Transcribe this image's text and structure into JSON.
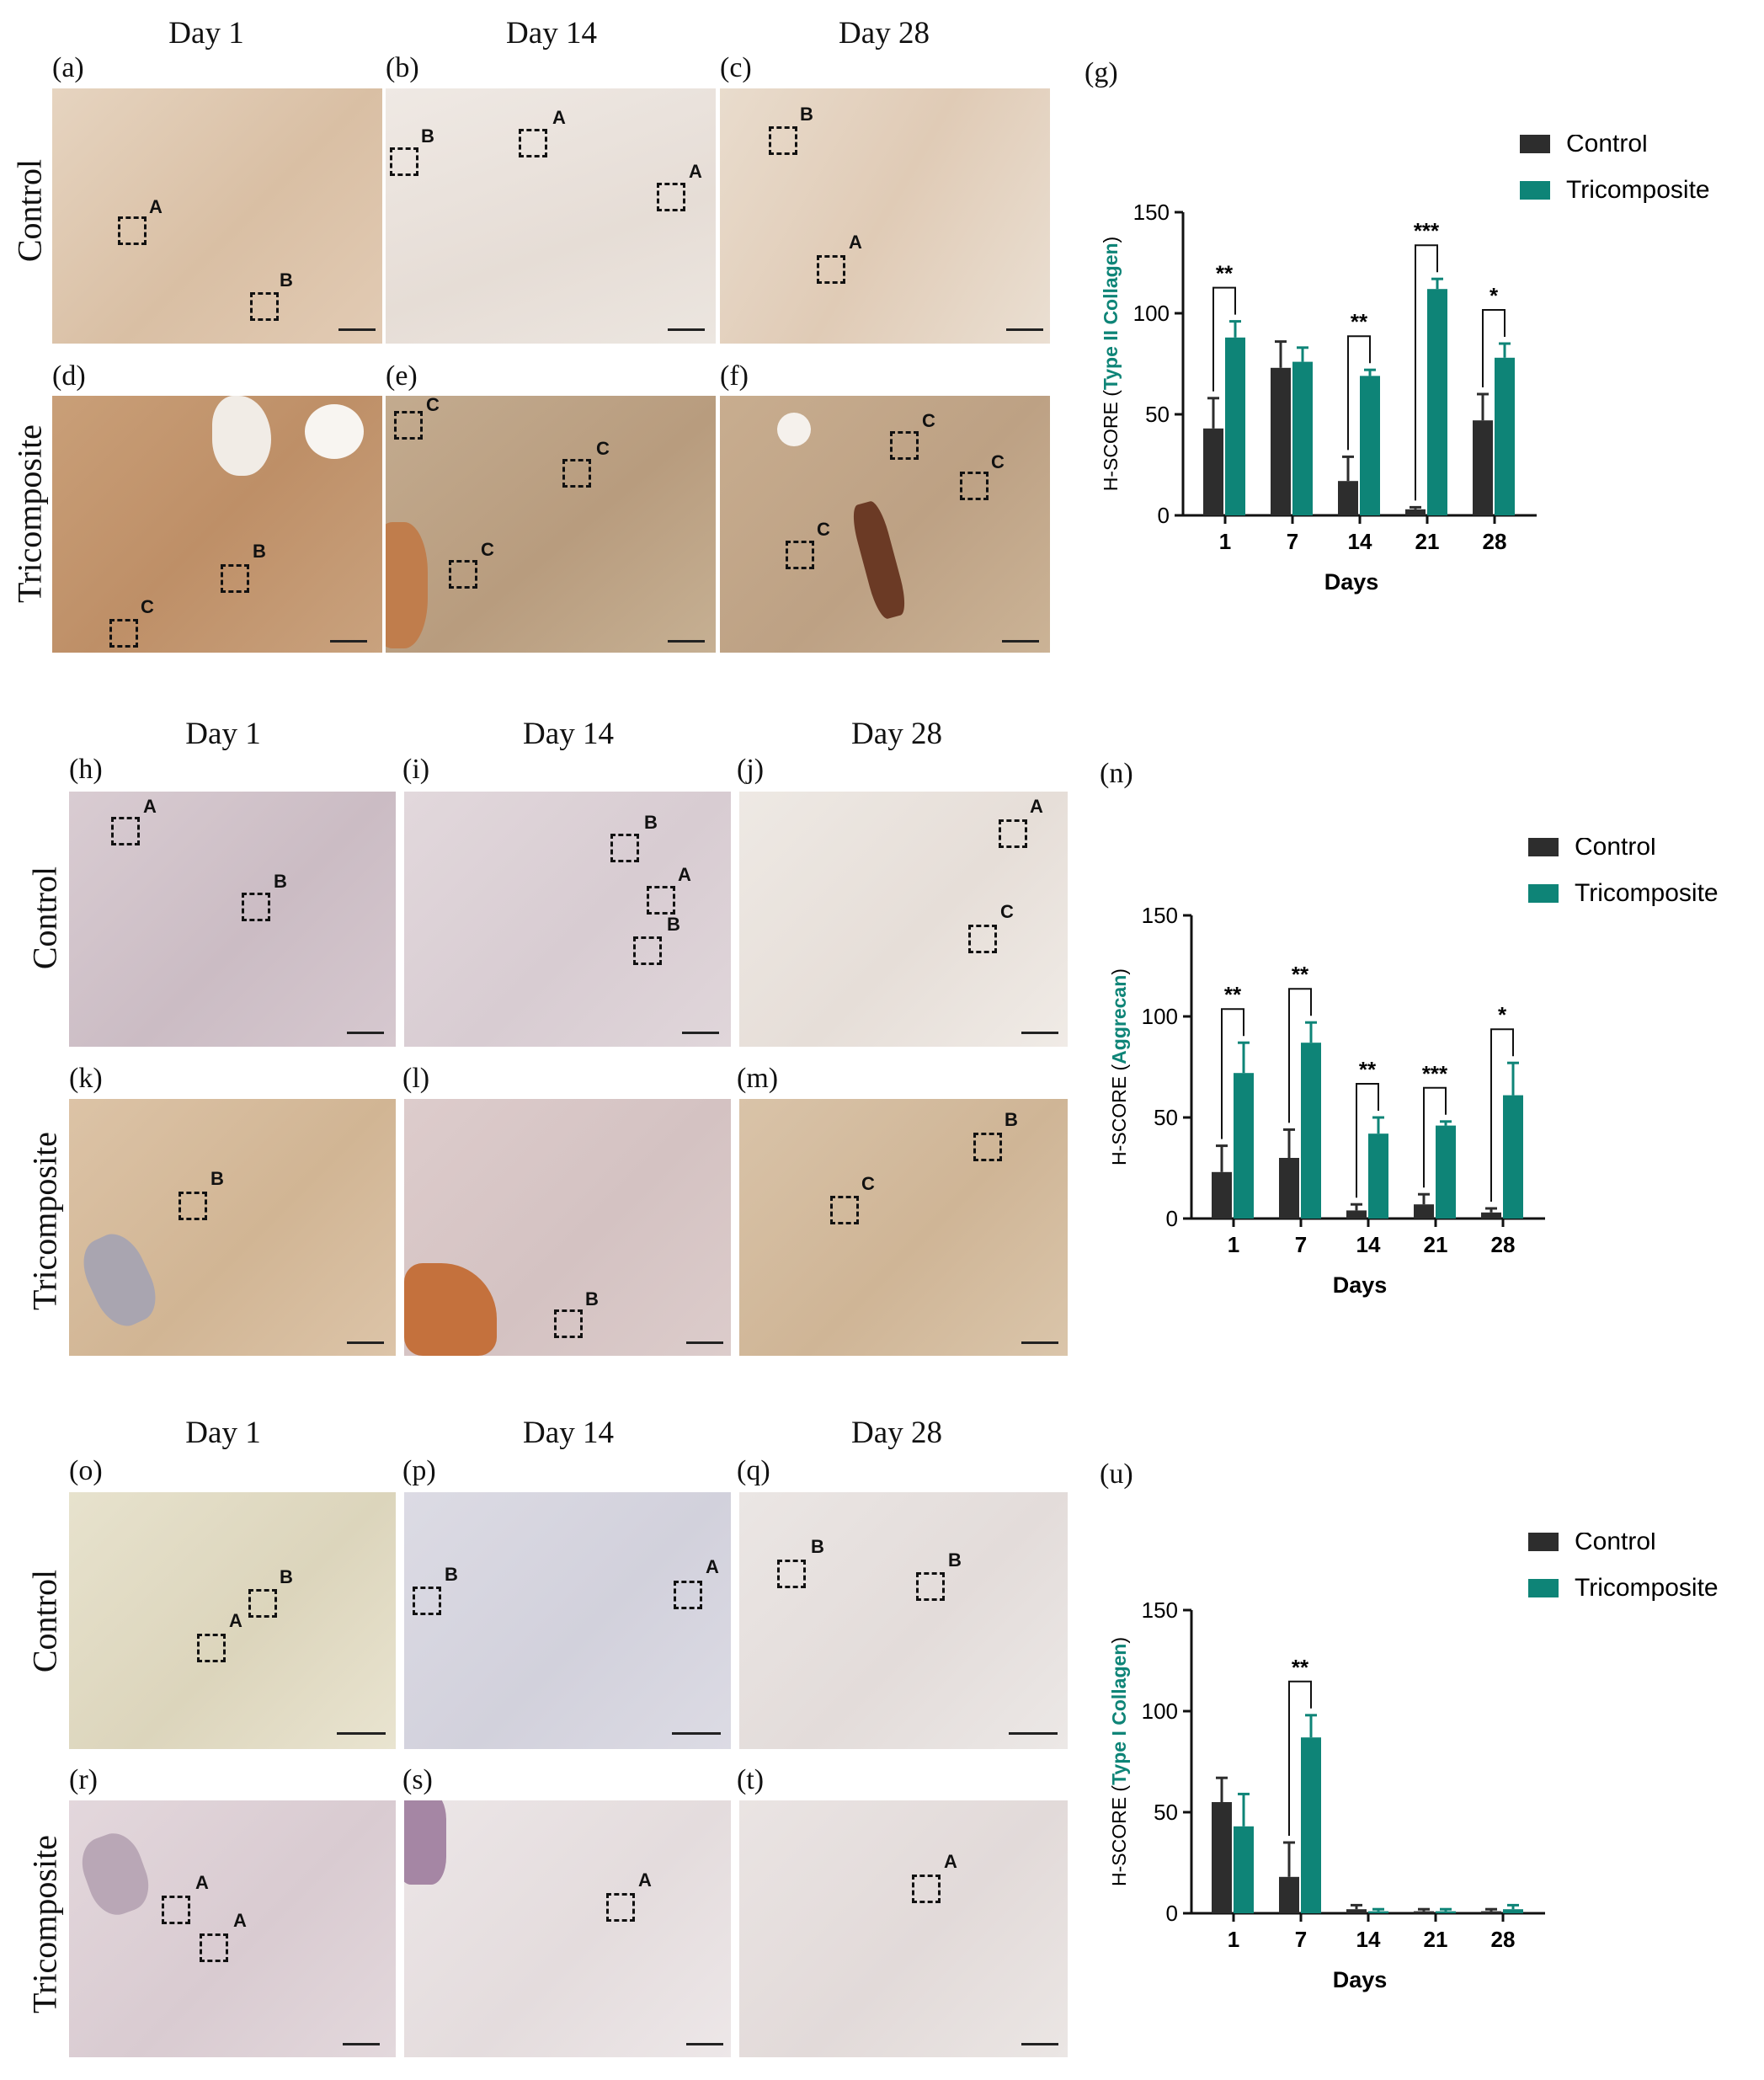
{
  "day_labels": [
    "Day 1",
    "Day 14",
    "Day 28"
  ],
  "row_labels": {
    "control": "Control",
    "tricomposite": "Tricomposite"
  },
  "panel_letters": [
    "(a)",
    "(b)",
    "(c)",
    "(d)",
    "(e)",
    "(f)",
    "(g)",
    "(h)",
    "(i)",
    "(j)",
    "(k)",
    "(l)",
    "(m)",
    "(n)",
    "(o)",
    "(p)",
    "(q)",
    "(r)",
    "(s)",
    "(t)",
    "(u)"
  ],
  "region_marks": [
    "A",
    "B",
    "C"
  ],
  "colors": {
    "control": "#2d2d2d",
    "tricomposite": "#0e8477",
    "ylabel_accent": "#0e8477"
  },
  "chart_data": [
    {
      "panel": "(g)",
      "type": "bar",
      "categories": [
        "1",
        "7",
        "14",
        "21",
        "28"
      ],
      "series": [
        {
          "name": "Control",
          "values": [
            43,
            73,
            17,
            3,
            47
          ],
          "errors": [
            15,
            13,
            12,
            1,
            13
          ]
        },
        {
          "name": "Tricomposite",
          "values": [
            88,
            76,
            69,
            112,
            78
          ],
          "errors": [
            8,
            7,
            3,
            5,
            7
          ]
        }
      ],
      "ylabel_prefix": "H-SCORE (",
      "ylabel_marker": "Type II Collagen",
      "ylabel_suffix": ")",
      "xlabel": "Days",
      "ylim": [
        0,
        150
      ],
      "yticks": [
        "0",
        "50",
        "100",
        "150"
      ],
      "significance": [
        "**",
        "",
        "**",
        "***",
        "*"
      ],
      "legend_position": "top-right"
    },
    {
      "panel": "(n)",
      "type": "bar",
      "categories": [
        "1",
        "7",
        "14",
        "21",
        "28"
      ],
      "series": [
        {
          "name": "Control",
          "values": [
            23,
            30,
            4,
            7,
            3
          ],
          "errors": [
            13,
            14,
            3,
            5,
            2
          ]
        },
        {
          "name": "Tricomposite",
          "values": [
            72,
            87,
            42,
            46,
            61
          ],
          "errors": [
            15,
            10,
            8,
            2,
            16
          ]
        }
      ],
      "ylabel_prefix": "H-SCORE (",
      "ylabel_marker": "Aggrecan",
      "ylabel_suffix": ")",
      "xlabel": "Days",
      "ylim": [
        0,
        150
      ],
      "yticks": [
        "0",
        "50",
        "100",
        "150"
      ],
      "significance": [
        "**",
        "**",
        "**",
        "***",
        "*"
      ],
      "legend_position": "top-right"
    },
    {
      "panel": "(u)",
      "type": "bar",
      "categories": [
        "1",
        "7",
        "14",
        "21",
        "28"
      ],
      "series": [
        {
          "name": "Control",
          "values": [
            55,
            18,
            2,
            1,
            1
          ],
          "errors": [
            12,
            17,
            2,
            1,
            1
          ]
        },
        {
          "name": "Tricomposite",
          "values": [
            43,
            87,
            1,
            1,
            2
          ],
          "errors": [
            16,
            11,
            1,
            1,
            2
          ]
        }
      ],
      "ylabel_prefix": "H-SCORE (",
      "ylabel_marker": "Type I Collagen",
      "ylabel_suffix": ")",
      "xlabel": "Days",
      "ylim": [
        0,
        150
      ],
      "yticks": [
        "0",
        "50",
        "100",
        "150"
      ],
      "significance": [
        "",
        "**",
        "",
        "",
        ""
      ],
      "legend_position": "top-right"
    }
  ]
}
